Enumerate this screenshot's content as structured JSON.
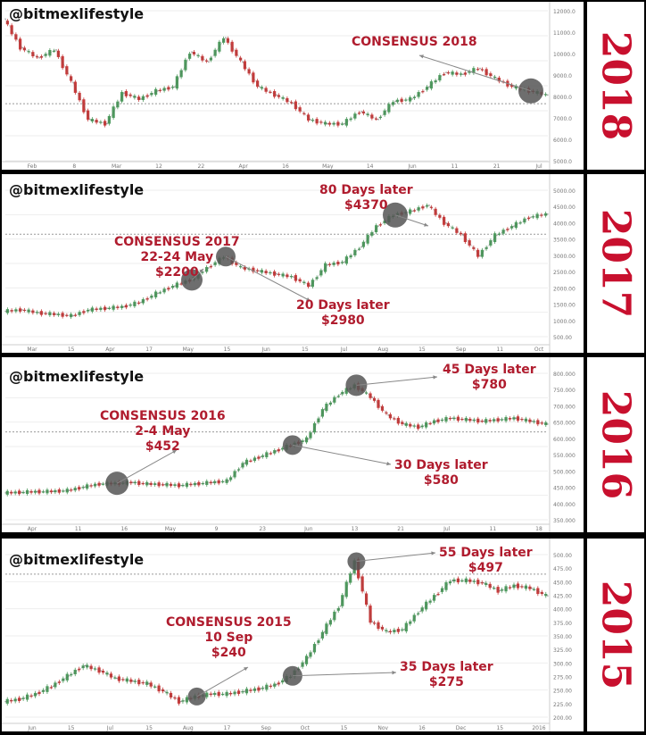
{
  "source_handle": "@bitmexlifestyle",
  "chart_data": [
    {
      "type": "line",
      "year_label": "2018",
      "annotations": [
        {
          "id": "consensus",
          "lines": [
            "CONSENSUS 2018"
          ]
        }
      ],
      "x_ticks": [
        "Feb",
        "8",
        "Mar",
        "12",
        "22",
        "Apr",
        "16",
        "May",
        "14",
        "Jun",
        "11",
        "21",
        "Jul"
      ],
      "y_ticks": [
        "12000.0",
        "11000.0",
        "10000.0",
        "9000.0",
        "8000.0",
        "7000.0",
        "6000.0",
        "5000.0"
      ],
      "ylim": [
        5000,
        12300
      ],
      "series": [
        {
          "values": [
            11900,
            10500,
            10000,
            10400,
            8800,
            7000,
            6800,
            8300,
            8000,
            8400,
            8600,
            10300,
            9800,
            11000,
            9800,
            8600,
            8200,
            7800,
            7000,
            6800,
            6800,
            7400,
            7000,
            7900,
            8000,
            8600,
            9300,
            9200,
            9500,
            9000,
            8600,
            8400,
            8200
          ]
        }
      ]
    },
    {
      "type": "line",
      "year_label": "2017",
      "annotations": [
        {
          "id": "consensus",
          "lines": [
            "CONSENSUS 2017",
            "22-24 May",
            "$2200"
          ]
        },
        {
          "id": "after20",
          "lines": [
            "20 Days later",
            "$2980"
          ]
        },
        {
          "id": "after80",
          "lines": [
            "80 Days later",
            "$4370"
          ]
        }
      ],
      "x_ticks": [
        "Mar",
        "15",
        "Apr",
        "17",
        "May",
        "15",
        "Jun",
        "15",
        "Jul",
        "Aug",
        "15",
        "Sep",
        "11",
        "Oct"
      ],
      "y_ticks": [
        "5000.00",
        "4500.00",
        "4000.00",
        "3500.00",
        "3000.00",
        "2500.00",
        "2000.00",
        "1500.00",
        "1000.00",
        "500.00"
      ],
      "ylim": [
        300,
        5200
      ],
      "series": [
        {
          "values": [
            1150,
            1200,
            1100,
            1050,
            1000,
            1200,
            1250,
            1300,
            1450,
            1750,
            2000,
            2200,
            2600,
            2980,
            2600,
            2500,
            2400,
            2300,
            2000,
            2700,
            2800,
            3300,
            4000,
            4370,
            4500,
            4700,
            4100,
            3700,
            3000,
            3700,
            4000,
            4300,
            4400
          ]
        }
      ]
    },
    {
      "type": "line",
      "year_label": "2016",
      "annotations": [
        {
          "id": "consensus",
          "lines": [
            "CONSENSUS 2016",
            "2-4 May",
            "$452"
          ]
        },
        {
          "id": "after30",
          "lines": [
            "30 Days later",
            "$580"
          ]
        },
        {
          "id": "after45",
          "lines": [
            "45 Days later",
            "$780"
          ]
        }
      ],
      "x_ticks": [
        "Apr",
        "11",
        "16",
        "May",
        "9",
        "23",
        "Jun",
        "13",
        "21",
        "Jul",
        "11",
        "18"
      ],
      "y_ticks": [
        "800.000",
        "750.000",
        "700.000",
        "650.000",
        "600.000",
        "550.000",
        "500.000",
        "450.000",
        "400.000",
        "350.000"
      ],
      "ylim": [
        330,
        820
      ],
      "series": [
        {
          "values": [
            420,
            422,
            424,
            425,
            428,
            440,
            450,
            452,
            455,
            450,
            448,
            445,
            450,
            455,
            460,
            520,
            540,
            560,
            580,
            600,
            700,
            750,
            780,
            740,
            680,
            650,
            640,
            660,
            670,
            665,
            660,
            665,
            670,
            660,
            650
          ]
        }
      ]
    },
    {
      "type": "line",
      "year_label": "2015",
      "annotations": [
        {
          "id": "consensus",
          "lines": [
            "CONSENSUS 2015",
            "10 Sep",
            "$240"
          ]
        },
        {
          "id": "after35",
          "lines": [
            "35 Days later",
            "$275"
          ]
        },
        {
          "id": "after55",
          "lines": [
            "55 Days later",
            "$497"
          ]
        }
      ],
      "x_ticks": [
        "Jun",
        "15",
        "Jul",
        "15",
        "Aug",
        "17",
        "Sep",
        "Oct",
        "15",
        "Nov",
        "16",
        "Dec",
        "15",
        "2016"
      ],
      "y_ticks": [
        "500.00",
        "475.00",
        "450.00",
        "425.00",
        "400.00",
        "375.00",
        "350.00",
        "325.00",
        "300.00",
        "275.00",
        "250.00",
        "225.00",
        "200.00"
      ],
      "ylim": [
        195,
        510
      ],
      "series": [
        {
          "values": [
            225,
            230,
            240,
            255,
            275,
            295,
            285,
            270,
            265,
            260,
            245,
            225,
            235,
            240,
            240,
            245,
            250,
            258,
            275,
            310,
            360,
            410,
            497,
            380,
            360,
            365,
            400,
            430,
            460,
            460,
            455,
            440,
            450,
            445,
            430
          ]
        }
      ]
    }
  ],
  "colors": {
    "year_label": "#c8102e",
    "annotation": "#b01c2e",
    "up": "#4e9a5e",
    "down": "#c63b3b"
  }
}
